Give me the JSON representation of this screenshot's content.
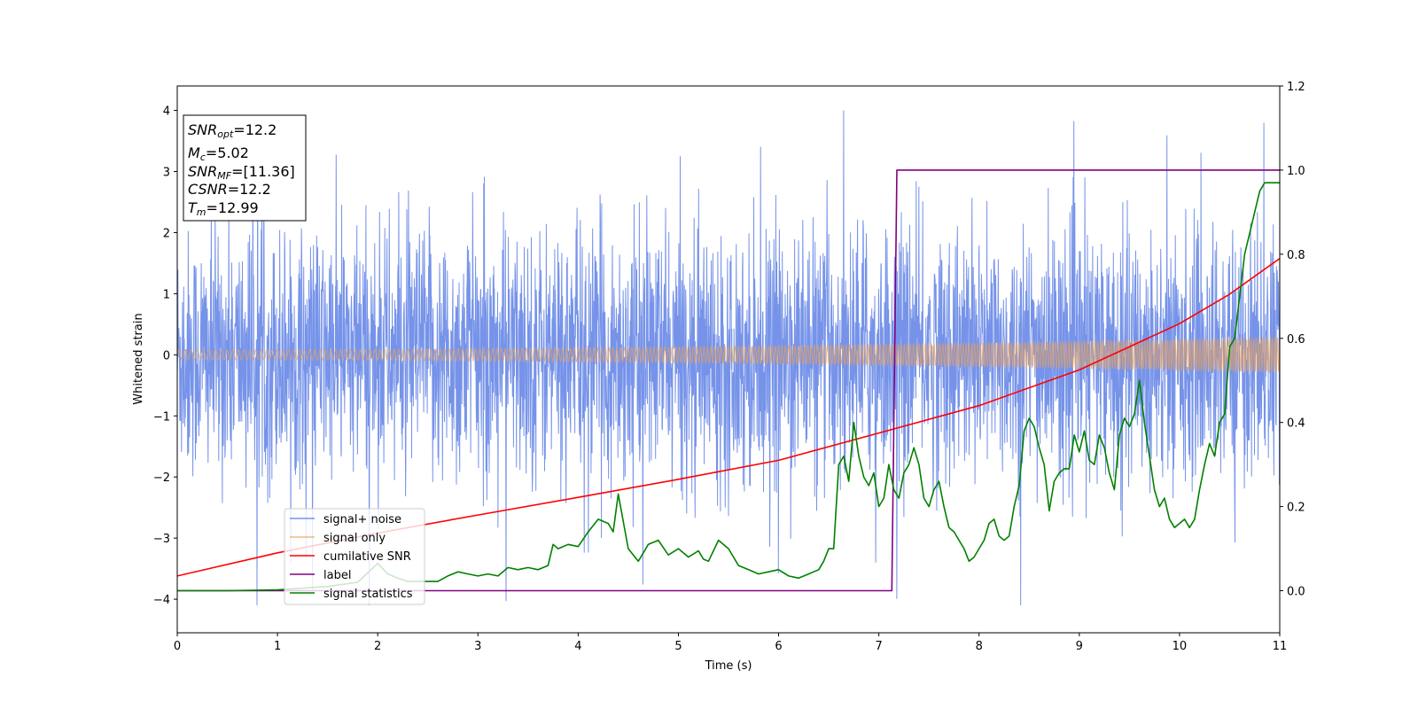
{
  "chart_data": {
    "type": "line",
    "xlabel": "Time (s)",
    "ylabel": "Whitened strain",
    "xlim": [
      0,
      11
    ],
    "ylim_left": [
      -4.55,
      4.4
    ],
    "ylim_right": [
      -0.1,
      1.2
    ],
    "x_ticks": [
      0,
      1,
      2,
      3,
      4,
      5,
      6,
      7,
      8,
      9,
      10,
      11
    ],
    "y_ticks_left": [
      -4,
      -3,
      -2,
      -1,
      0,
      1,
      2,
      3,
      4
    ],
    "y_ticks_right": [
      0.0,
      0.2,
      0.4,
      0.6,
      0.8,
      1.0,
      1.2
    ],
    "legend_position": "lower-left",
    "info_box": {
      "snr_opt": {
        "base": "SNR",
        "sub": "opt",
        "value": "=12.2"
      },
      "mc": {
        "base": "M",
        "sub": "c",
        "value": "=5.02"
      },
      "snr_mf": {
        "base": "SNR",
        "sub": "MF",
        "value": "=[11.36]"
      },
      "csnr": {
        "base": "CSNR",
        "sub": "",
        "value": "=12.2"
      },
      "tm": {
        "base": "T",
        "sub": "m",
        "value": "=12.99"
      }
    },
    "series": [
      {
        "name": "signal+ noise",
        "color": "#4169e1",
        "axis": "left",
        "kind": "noise",
        "core_amplitude": [
          -1.9,
          1.9
        ],
        "spike_range": [
          -4.1,
          4.0
        ]
      },
      {
        "name": "signal only",
        "color": "#e8a05c",
        "axis": "left",
        "kind": "chirp",
        "amplitude_start": 0.08,
        "amplitude_end": 0.3
      },
      {
        "name": "cumilative SNR",
        "color": "#ff0000",
        "axis": "right",
        "x": [
          0,
          1,
          2,
          3,
          4,
          5,
          6,
          7,
          8,
          9,
          10,
          10.5,
          11
        ],
        "y": [
          0.035,
          0.09,
          0.137,
          0.18,
          0.222,
          0.265,
          0.31,
          0.375,
          0.44,
          0.525,
          0.635,
          0.705,
          0.79
        ]
      },
      {
        "name": "label",
        "color": "#800080",
        "axis": "right",
        "x": [
          0,
          7.13,
          7.18,
          11
        ],
        "y": [
          0.0,
          0.0,
          1.0,
          1.0
        ]
      },
      {
        "name": "signal statistics",
        "color": "#008000",
        "axis": "right",
        "x": [
          0,
          0.5,
          1.0,
          1.5,
          1.8,
          2.0,
          2.1,
          2.2,
          2.3,
          2.5,
          2.6,
          2.7,
          2.8,
          2.9,
          3.0,
          3.1,
          3.2,
          3.3,
          3.4,
          3.5,
          3.6,
          3.7,
          3.75,
          3.8,
          3.9,
          4.0,
          4.1,
          4.2,
          4.3,
          4.35,
          4.4,
          4.5,
          4.6,
          4.65,
          4.7,
          4.8,
          4.9,
          5.0,
          5.1,
          5.2,
          5.25,
          5.3,
          5.4,
          5.5,
          5.6,
          5.7,
          5.8,
          5.9,
          6.0,
          6.1,
          6.2,
          6.3,
          6.35,
          6.4,
          6.45,
          6.5,
          6.55,
          6.6,
          6.65,
          6.7,
          6.75,
          6.8,
          6.85,
          6.9,
          6.95,
          7.0,
          7.05,
          7.1,
          7.15,
          7.2,
          7.25,
          7.3,
          7.35,
          7.4,
          7.45,
          7.5,
          7.55,
          7.6,
          7.65,
          7.7,
          7.75,
          7.8,
          7.85,
          7.9,
          7.95,
          8.0,
          8.05,
          8.1,
          8.15,
          8.2,
          8.25,
          8.3,
          8.35,
          8.4,
          8.45,
          8.5,
          8.55,
          8.6,
          8.65,
          8.7,
          8.75,
          8.8,
          8.85,
          8.9,
          8.95,
          9.0,
          9.05,
          9.1,
          9.15,
          9.2,
          9.25,
          9.3,
          9.35,
          9.4,
          9.45,
          9.5,
          9.55,
          9.6,
          9.65,
          9.7,
          9.75,
          9.8,
          9.85,
          9.9,
          9.95,
          10.0,
          10.05,
          10.1,
          10.15,
          10.2,
          10.25,
          10.3,
          10.35,
          10.4,
          10.45,
          10.5,
          10.55,
          10.6,
          10.65,
          10.7,
          10.75,
          10.8,
          10.85,
          10.9,
          10.95,
          11.0
        ],
        "y": [
          0.0,
          0.0,
          0.002,
          0.01,
          0.02,
          0.065,
          0.04,
          0.03,
          0.022,
          0.022,
          0.022,
          0.035,
          0.045,
          0.04,
          0.035,
          0.04,
          0.035,
          0.055,
          0.05,
          0.055,
          0.05,
          0.06,
          0.11,
          0.1,
          0.11,
          0.105,
          0.14,
          0.17,
          0.16,
          0.14,
          0.23,
          0.1,
          0.07,
          0.09,
          0.11,
          0.12,
          0.085,
          0.1,
          0.08,
          0.095,
          0.075,
          0.07,
          0.12,
          0.1,
          0.06,
          0.05,
          0.04,
          0.045,
          0.05,
          0.035,
          0.03,
          0.04,
          0.045,
          0.05,
          0.07,
          0.1,
          0.1,
          0.3,
          0.32,
          0.26,
          0.4,
          0.32,
          0.27,
          0.25,
          0.28,
          0.2,
          0.22,
          0.3,
          0.24,
          0.22,
          0.28,
          0.3,
          0.34,
          0.3,
          0.22,
          0.2,
          0.24,
          0.26,
          0.2,
          0.15,
          0.14,
          0.12,
          0.1,
          0.07,
          0.08,
          0.1,
          0.12,
          0.16,
          0.17,
          0.13,
          0.12,
          0.13,
          0.2,
          0.25,
          0.38,
          0.41,
          0.39,
          0.34,
          0.3,
          0.19,
          0.26,
          0.28,
          0.29,
          0.29,
          0.37,
          0.33,
          0.38,
          0.31,
          0.3,
          0.37,
          0.34,
          0.28,
          0.24,
          0.37,
          0.41,
          0.39,
          0.42,
          0.5,
          0.4,
          0.32,
          0.24,
          0.2,
          0.22,
          0.17,
          0.15,
          0.16,
          0.17,
          0.15,
          0.17,
          0.24,
          0.3,
          0.35,
          0.32,
          0.4,
          0.42,
          0.58,
          0.6,
          0.7,
          0.8,
          0.85,
          0.9,
          0.95,
          0.97,
          0.97,
          0.97,
          0.97
        ]
      }
    ]
  }
}
